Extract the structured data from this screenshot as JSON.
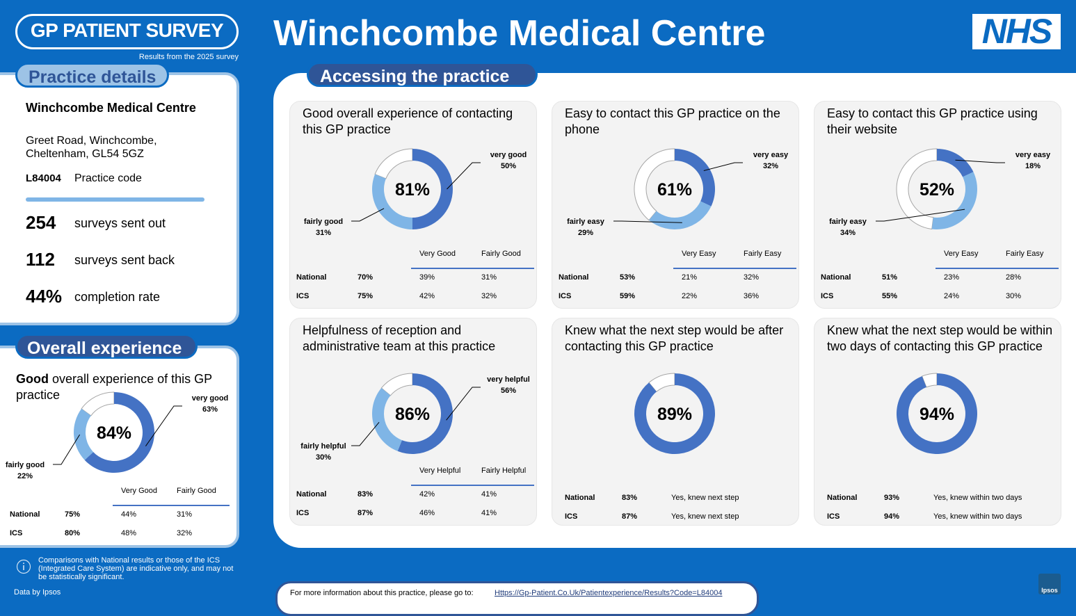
{
  "header": {
    "logo": "GP PATIENT SURVEY",
    "survey_note": "Results from the 2025 survey",
    "title": "Winchcombe Medical Centre",
    "nhs_logo": "NHS"
  },
  "practice": {
    "heading": "Practice details",
    "name": "Winchcombe Medical Centre",
    "address": [
      "Greet Road, Winchcombe,",
      "Cheltenham, GL54 5GZ"
    ],
    "code": "L84004",
    "code_label": "Practice code",
    "stats": [
      {
        "value": "254",
        "label": "surveys sent out"
      },
      {
        "value": "112",
        "label": "surveys sent back"
      },
      {
        "value": "44%",
        "label": "completion rate"
      }
    ]
  },
  "overall": {
    "heading": "Overall experience",
    "title_bold": "Good",
    "title_rest": "overall experience of this GP practice",
    "chart": {
      "type": "donut",
      "total": 84,
      "total_label": "84%",
      "segments": [
        "very good",
        "fairly good"
      ],
      "values": [
        63,
        22
      ],
      "value_labels": [
        "63%",
        "22%"
      ],
      "colors": [
        "#4472c4",
        "#7fb5e6"
      ]
    },
    "table": {
      "columns": [
        "Very Good",
        "Fairly Good"
      ],
      "rows": [
        [
          "National",
          "75%",
          "44%",
          "31%"
        ],
        [
          "ICS",
          "80%",
          "48%",
          "32%"
        ]
      ]
    }
  },
  "access": {
    "heading": "Accessing the practice",
    "cards": [
      {
        "title": "Good overall experience of contacting this GP practice",
        "chart": {
          "type": "donut",
          "total": 81,
          "total_label": "81%",
          "segments": [
            "very good",
            "fairly good"
          ],
          "values": [
            50,
            31
          ],
          "value_labels": [
            "50%",
            "31%"
          ],
          "colors": [
            "#4472c4",
            "#7fb5e6"
          ]
        },
        "table": {
          "columns": [
            "Very Good",
            "Fairly Good"
          ],
          "rows": [
            [
              "National",
              "70%",
              "39%",
              "31%"
            ],
            [
              "ICS",
              "75%",
              "42%",
              "32%"
            ]
          ]
        }
      },
      {
        "title": "Easy to contact this GP practice on the phone",
        "chart": {
          "type": "donut",
          "total": 61,
          "total_label": "61%",
          "segments": [
            "very easy",
            "fairly easy"
          ],
          "values": [
            32,
            29
          ],
          "value_labels": [
            "32%",
            "29%"
          ],
          "colors": [
            "#4472c4",
            "#7fb5e6"
          ]
        },
        "table": {
          "columns": [
            "Very Easy",
            "Fairly Easy"
          ],
          "rows": [
            [
              "National",
              "53%",
              "21%",
              "32%"
            ],
            [
              "ICS",
              "59%",
              "22%",
              "36%"
            ]
          ]
        }
      },
      {
        "title": "Easy to contact this GP practice using their website",
        "chart": {
          "type": "donut",
          "total": 52,
          "total_label": "52%",
          "segments": [
            "very easy",
            "fairly easy"
          ],
          "values": [
            18,
            34
          ],
          "value_labels": [
            "18%",
            "34%"
          ],
          "colors": [
            "#4472c4",
            "#7fb5e6"
          ]
        },
        "table": {
          "columns": [
            "Very Easy",
            "Fairly Easy"
          ],
          "rows": [
            [
              "National",
              "51%",
              "23%",
              "28%"
            ],
            [
              "ICS",
              "55%",
              "24%",
              "30%"
            ]
          ]
        }
      },
      {
        "title": "Helpfulness of reception and administrative team at this practice",
        "chart": {
          "type": "donut",
          "total": 86,
          "total_label": "86%",
          "segments": [
            "very helpful",
            "fairly helpful"
          ],
          "values": [
            56,
            30
          ],
          "value_labels": [
            "56%",
            "30%"
          ],
          "colors": [
            "#4472c4",
            "#7fb5e6"
          ]
        },
        "table": {
          "columns": [
            "Very Helpful",
            "Fairly Helpful"
          ],
          "rows": [
            [
              "National",
              "83%",
              "42%",
              "41%"
            ],
            [
              "ICS",
              "87%",
              "46%",
              "41%"
            ]
          ]
        }
      },
      {
        "title": "Knew what the next step would be after contacting this GP practice",
        "chart": {
          "type": "donut",
          "values": [
            89
          ],
          "value_labels": [
            "89%"
          ],
          "colors": [
            "#4472c4"
          ]
        },
        "table": {
          "rows": [
            [
              "National",
              "83%",
              "Yes, knew next step"
            ],
            [
              "ICS",
              "87%",
              "Yes, knew next step"
            ]
          ]
        }
      },
      {
        "title": "Knew what the next step would be within two days of contacting this GP practice",
        "chart": {
          "type": "donut",
          "values": [
            94
          ],
          "value_labels": [
            "94%"
          ],
          "colors": [
            "#4472c4"
          ]
        },
        "table": {
          "rows": [
            [
              "National",
              "93%",
              "Yes, knew within two days"
            ],
            [
              "ICS",
              "94%",
              "Yes, knew within two days"
            ]
          ]
        }
      }
    ]
  },
  "footer": {
    "note": "Comparisons with National results or those of the ICS (Integrated Care System) are indicative only, and may not be statistically significant.",
    "source": "Data by Ipsos",
    "more_info": "For more information about this practice, please go to:",
    "link": "Https://Gp-Patient.Co.Uk/Patientexperience/Results?Code=L84004",
    "ipsos_logo": "Ipsos"
  }
}
